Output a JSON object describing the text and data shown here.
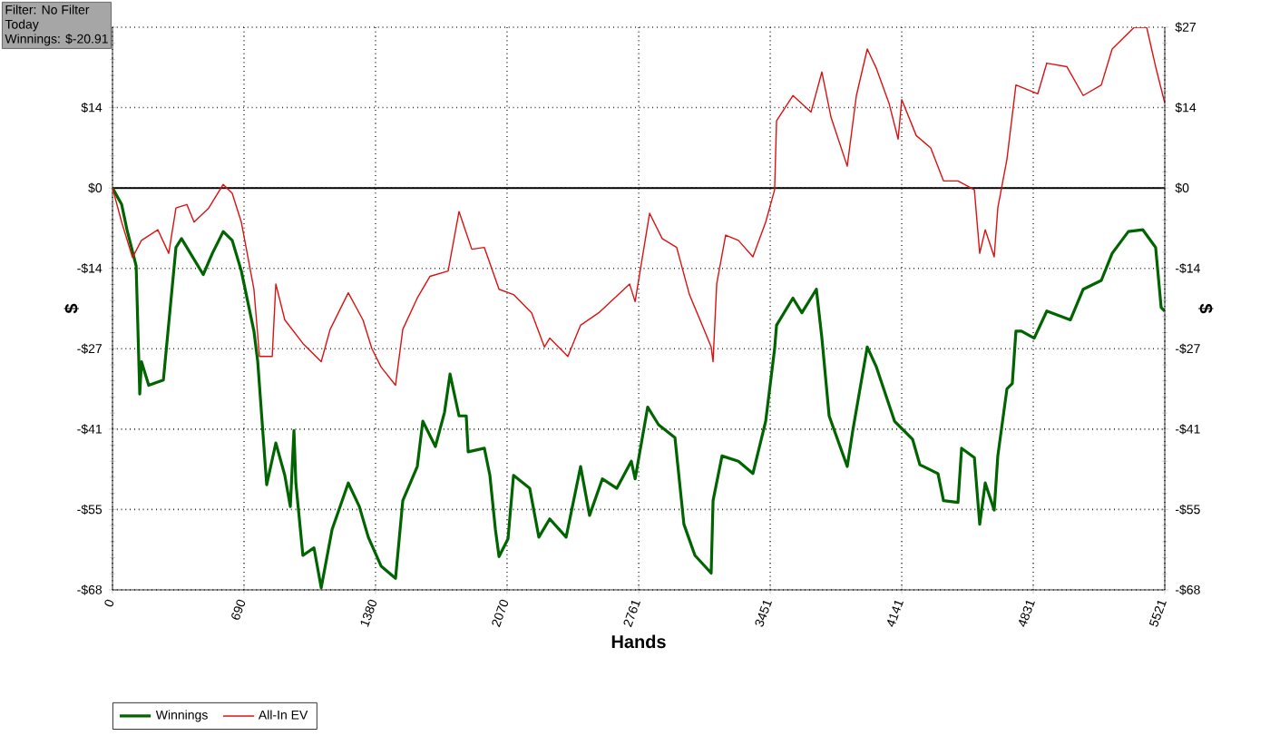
{
  "chart_data": {
    "type": "line",
    "xlabel": "Hands",
    "ylabel": "$",
    "y2label": "$",
    "annotations": [
      "Filter: No Filter",
      "Today",
      "Winnings: $-20.91"
    ],
    "x": [
      0,
      48,
      76,
      124,
      143,
      152,
      190,
      267,
      333,
      362,
      476,
      524,
      581,
      628,
      676,
      742,
      762,
      771,
      809,
      857,
      904,
      933,
      952,
      962,
      999,
      1057,
      1095,
      1152,
      1237,
      1295,
      1342,
      1409,
      1485,
      1523,
      1599,
      1628,
      1694,
      1742,
      1771,
      1818,
      1856,
      1866,
      1951,
      1980,
      2009,
      2028,
      2075,
      2104,
      2189,
      2237,
      2294,
      2380,
      2456,
      2503,
      2570,
      2646,
      2722,
      2742,
      2808,
      2865,
      2951,
      2998,
      3056,
      3141,
      3151,
      3198,
      3284,
      3360,
      3427,
      3474,
      3484,
      3570,
      3617,
      3693,
      3722,
      3760,
      3855,
      3884,
      3960,
      4008,
      4103,
      4198,
      4236,
      4331,
      4360,
      4436,
      4455,
      4522,
      4550,
      4579,
      4626,
      4645,
      4693,
      4721,
      4740,
      4769,
      4836,
      4902,
      5026,
      5093,
      5188,
      5245,
      5330,
      5406,
      5473,
      5502,
      5521
    ],
    "series": [
      {
        "name": "Winnings",
        "color": "#006400",
        "values": [
          0,
          -2.8,
          -7.1,
          -13.2,
          -35.0,
          -29.5,
          -33.5,
          -32.6,
          -10.1,
          -8.6,
          -14.7,
          -11.1,
          -7.4,
          -8.9,
          -14.1,
          -24.3,
          -29.5,
          -33.5,
          -50.4,
          -43.3,
          -48.8,
          -54.1,
          -41.2,
          -50.1,
          -62.4,
          -61.1,
          -67.9,
          -58.0,
          -50.1,
          -54.1,
          -59.3,
          -64.2,
          -66.3,
          -53.1,
          -47.3,
          -39.6,
          -43.9,
          -38.1,
          -31.6,
          -38.7,
          -38.7,
          -44.8,
          -44.2,
          -48.8,
          -58.0,
          -62.6,
          -59.6,
          -48.8,
          -51.0,
          -59.3,
          -56.2,
          -59.3,
          -47.3,
          -55.6,
          -49.4,
          -51.0,
          -46.4,
          -49.4,
          -37.2,
          -40.2,
          -42.4,
          -57.1,
          -62.4,
          -65.4,
          -53.1,
          -45.5,
          -46.4,
          -48.5,
          -39.6,
          -27.3,
          -23.3,
          -18.7,
          -21.2,
          -17.2,
          -25.5,
          -38.7,
          -47.3,
          -41.2,
          -27.0,
          -30.4,
          -39.6,
          -42.7,
          -47.0,
          -48.5,
          -53.1,
          -53.4,
          -44.2,
          -45.8,
          -57.1,
          -50.1,
          -54.7,
          -45.5,
          -34.1,
          -33.2,
          -24.3,
          -24.3,
          -25.5,
          -20.9,
          -22.4,
          -17.2,
          -15.7,
          -11.1,
          -7.4,
          -7.1,
          -10.1,
          -20.3,
          -20.9
        ]
      },
      {
        "name": "All-In EV",
        "color": "#dd1111",
        "x": [
          0,
          48,
          105,
          152,
          238,
          295,
          333,
          390,
          428,
          505,
          581,
          628,
          676,
          742,
          771,
          838,
          857,
          904,
          999,
          1095,
          1142,
          1237,
          1314,
          1361,
          1409,
          1485,
          1523,
          1599,
          1666,
          1761,
          1818,
          1885,
          1951,
          2028,
          2104,
          2199,
          2266,
          2294,
          2389,
          2456,
          2551,
          2713,
          2742,
          2818,
          2884,
          2960,
          3027,
          3094,
          3141,
          3151,
          3170,
          3217,
          3284,
          3360,
          3427,
          3474,
          3484,
          3570,
          3665,
          3722,
          3770,
          3855,
          3903,
          3960,
          4008,
          4074,
          4122,
          4141,
          4217,
          4293,
          4360,
          4436,
          4522,
          4550,
          4579,
          4626,
          4645,
          4693,
          4740,
          4855,
          4902,
          5007,
          5093,
          5188,
          5245,
          5361,
          5426,
          5473,
          5521
        ],
        "values": [
          0,
          -5.8,
          -11.8,
          -8.9,
          -7.1,
          -11.1,
          -3.4,
          -2.8,
          -5.8,
          -3.4,
          0.6,
          -0.9,
          -5.8,
          -17.2,
          -28.6,
          -28.6,
          -16.3,
          -22.4,
          -26.4,
          -29.5,
          -24.0,
          -17.8,
          -22.4,
          -27.3,
          -30.4,
          -33.5,
          -24.0,
          -18.7,
          -15.0,
          -14.1,
          -4.0,
          -10.4,
          -10.1,
          -17.2,
          -18.1,
          -21.2,
          -27.0,
          -25.5,
          -28.6,
          -23.3,
          -21.2,
          -16.3,
          -19.3,
          -4.3,
          -8.6,
          -10.1,
          -18.1,
          -23.3,
          -27.0,
          -29.5,
          -16.3,
          -8.0,
          -8.9,
          -11.7,
          -5.8,
          -0.3,
          11.4,
          15.7,
          12.9,
          19.7,
          12.0,
          3.7,
          15.7,
          23.6,
          20.3,
          14.4,
          8.3,
          15.0,
          8.9,
          6.8,
          1.2,
          1.2,
          -0.3,
          -11.1,
          -7.1,
          -11.7,
          -3.4,
          4.9,
          17.5,
          16.0,
          21.2,
          20.6,
          15.7,
          17.5,
          23.6,
          27.3,
          27.3,
          20.6,
          14.4
        ]
      }
    ],
    "xlim": [
      0,
      5521
    ],
    "xticks": [
      0,
      690,
      1380,
      2070,
      2761,
      3451,
      4141,
      4831,
      5521
    ],
    "ylim": [
      -68.25,
      27.3
    ],
    "yticks": [
      {
        "value": -68.25,
        "label": "-$68"
      },
      {
        "value": -54.6,
        "label": "-$55"
      },
      {
        "value": -40.95,
        "label": "-$41"
      },
      {
        "value": -27.3,
        "label": "-$27"
      },
      {
        "value": -13.65,
        "label": "-$14"
      },
      {
        "value": 0,
        "label": "$0"
      },
      {
        "value": 13.65,
        "label": "$14"
      },
      {
        "value": 27.3,
        "label": null
      }
    ],
    "y2lim": [
      -68.25,
      27.3
    ],
    "y2ticks": [
      {
        "value": -68.25,
        "label": "-$68"
      },
      {
        "value": -54.6,
        "label": "-$55"
      },
      {
        "value": -40.95,
        "label": "-$41"
      },
      {
        "value": -27.3,
        "label": "-$27"
      },
      {
        "value": -13.65,
        "label": "-$14"
      },
      {
        "value": 0,
        "label": "$0"
      },
      {
        "value": 13.65,
        "label": "$14"
      },
      {
        "value": 27.3,
        "label": "$27"
      }
    ],
    "ref_lines": [
      {
        "axis": "y",
        "value": 0,
        "color": "#000000"
      }
    ],
    "grid": true,
    "legend": "bottom left",
    "marker": "none",
    "line_style": "solid"
  }
}
